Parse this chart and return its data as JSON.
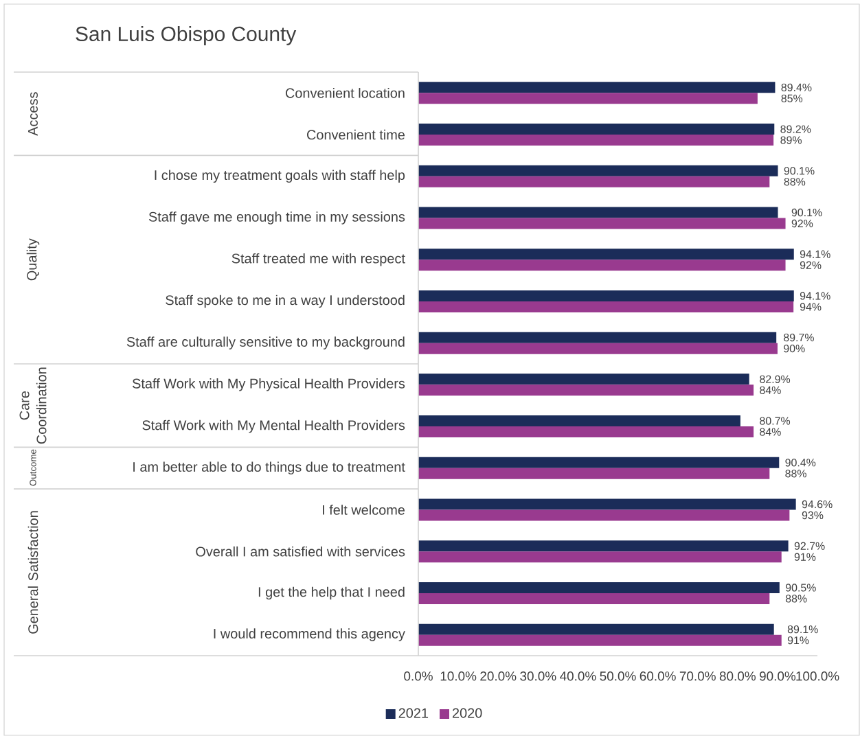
{
  "chart_data": {
    "type": "bar",
    "orientation": "horizontal",
    "title": "San Luis Obispo County",
    "categories": [
      "Convenient location",
      "Convenient time",
      "I chose my treatment goals with staff help",
      "Staff gave me enough time in my sessions",
      "Staff treated me with respect",
      "Staff spoke to me in a way I understood",
      "Staff are culturally sensitive to my background",
      "Staff Work with My Physical Health Providers",
      "Staff Work with My Mental Health Providers",
      "I am better able to do things due to treatment",
      "I felt welcome",
      "Overall I am satisfied with services",
      "I get the help that I need",
      "I would recommend this agency"
    ],
    "series": [
      {
        "name": "2021",
        "color": "#1b2c59",
        "values": [
          89.4,
          89.2,
          90.1,
          90.1,
          94.1,
          94.1,
          89.7,
          82.9,
          80.7,
          90.4,
          94.6,
          92.7,
          90.5,
          89.1
        ],
        "value_labels": [
          "89.4%",
          "89.2%",
          "90.1%",
          "90.1%",
          "94.1%",
          "94.1%",
          "89.7%",
          "82.9%",
          "80.7%",
          "90.4%",
          "94.6%",
          "92.7%",
          "90.5%",
          "89.1%"
        ]
      },
      {
        "name": "2020",
        "color": "#993a8f",
        "values": [
          85,
          89,
          88,
          92,
          92,
          94,
          90,
          84,
          84,
          88,
          93,
          91,
          88,
          91
        ],
        "value_labels": [
          "85%",
          "89%",
          "88%",
          "92%",
          "92%",
          "94%",
          "90%",
          "84%",
          "84%",
          "88%",
          "93%",
          "91%",
          "88%",
          "91%"
        ]
      }
    ],
    "xlim": [
      0,
      100
    ],
    "xticks": [
      {
        "value": 0,
        "label": "0.0%"
      },
      {
        "value": 10,
        "label": "10.0%"
      },
      {
        "value": 20,
        "label": "20.0%"
      },
      {
        "value": 30,
        "label": "30.0%"
      },
      {
        "value": 40,
        "label": "40.0%"
      },
      {
        "value": 50,
        "label": "50.0%"
      },
      {
        "value": 60,
        "label": "60.0%"
      },
      {
        "value": 70,
        "label": "70.0%"
      },
      {
        "value": 80,
        "label": "80.0%"
      },
      {
        "value": 90,
        "label": "90.0%"
      },
      {
        "value": 100,
        "label": "100.0%"
      }
    ],
    "annotations": [
      "Access",
      "Quality",
      "Care Coordination",
      "Outcome",
      "General Satisfaction"
    ],
    "legend": "bottom"
  }
}
